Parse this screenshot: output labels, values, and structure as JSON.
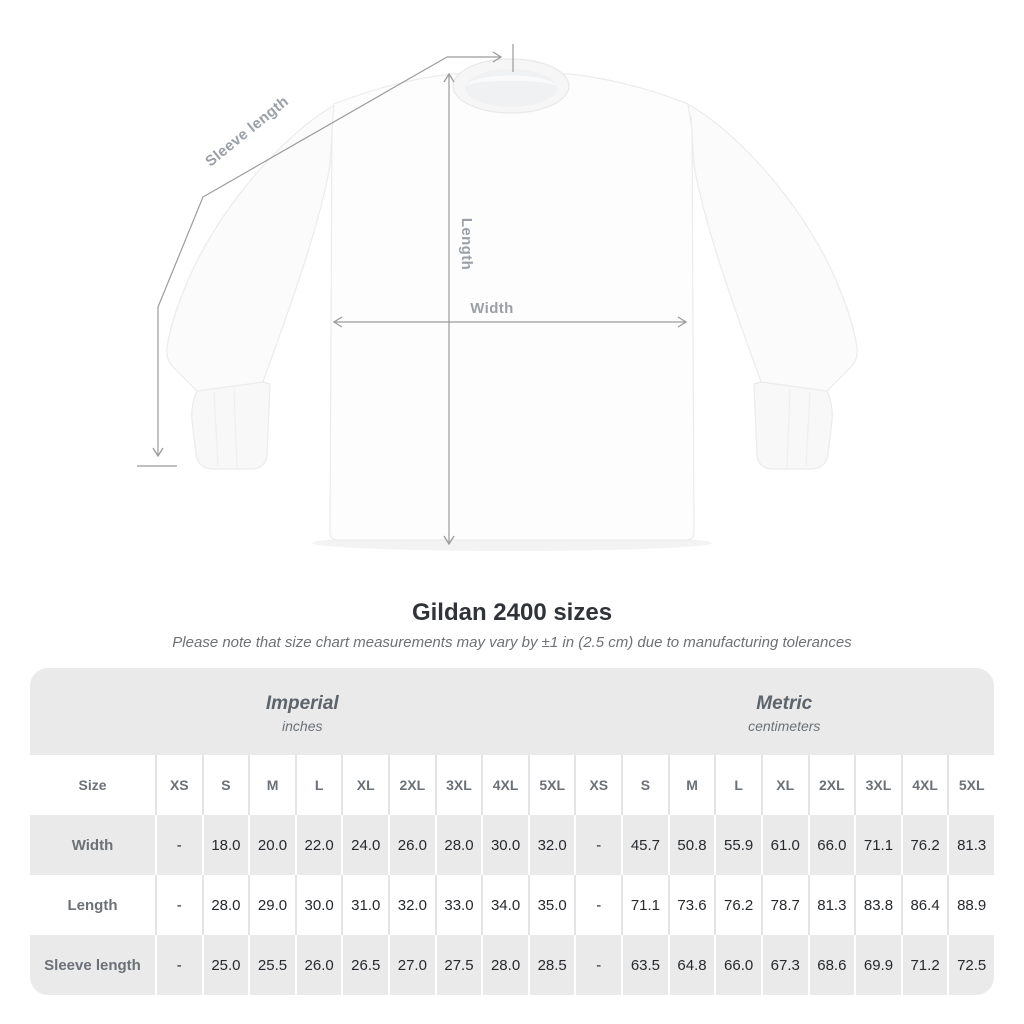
{
  "diagram": {
    "sleeve_length_label": "Sleeve length",
    "length_label": "Length",
    "width_label": "Width"
  },
  "title": "Gildan 2400 sizes",
  "subtitle": "Please note that size chart measurements may vary by ±1 in (2.5 cm) due to manufacturing tolerances",
  "chart_data": {
    "type": "table",
    "title": "Gildan 2400 sizes",
    "note": "Please note that size chart measurements may vary by ±1 in (2.5 cm) due to manufacturing tolerances",
    "unit_groups": [
      {
        "label": "Imperial",
        "sublabel": "inches"
      },
      {
        "label": "Metric",
        "sublabel": "centimeters"
      }
    ],
    "size_column_header": "Size",
    "sizes": [
      "XS",
      "S",
      "M",
      "L",
      "XL",
      "2XL",
      "3XL",
      "4XL",
      "5XL"
    ],
    "rows": [
      {
        "label": "Width",
        "imperial": [
          "-",
          "18.0",
          "20.0",
          "22.0",
          "24.0",
          "26.0",
          "28.0",
          "30.0",
          "32.0"
        ],
        "metric": [
          "-",
          "45.7",
          "50.8",
          "55.9",
          "61.0",
          "66.0",
          "71.1",
          "76.2",
          "81.3"
        ]
      },
      {
        "label": "Length",
        "imperial": [
          "-",
          "28.0",
          "29.0",
          "30.0",
          "31.0",
          "32.0",
          "33.0",
          "34.0",
          "35.0"
        ],
        "metric": [
          "-",
          "71.1",
          "73.6",
          "76.2",
          "78.7",
          "81.3",
          "83.8",
          "86.4",
          "88.9"
        ]
      },
      {
        "label": "Sleeve length",
        "imperial": [
          "-",
          "25.0",
          "25.5",
          "26.0",
          "26.5",
          "27.0",
          "27.5",
          "28.0",
          "28.5"
        ],
        "metric": [
          "-",
          "63.5",
          "64.8",
          "66.0",
          "67.3",
          "68.6",
          "69.9",
          "71.2",
          "72.5"
        ]
      }
    ]
  },
  "colors": {
    "table_bg": "#eaeaeb",
    "row_white": "#ffffff",
    "divider_on_white": "#e4e4e6",
    "divider_on_gray": "#ffffff",
    "header_text": "#6b7177",
    "value_text": "#26292d",
    "dimension_line": "#9b9b9b",
    "diagram_label": "#9aa0a6",
    "title_text": "#303338",
    "subtitle_text": "#6e7174"
  }
}
